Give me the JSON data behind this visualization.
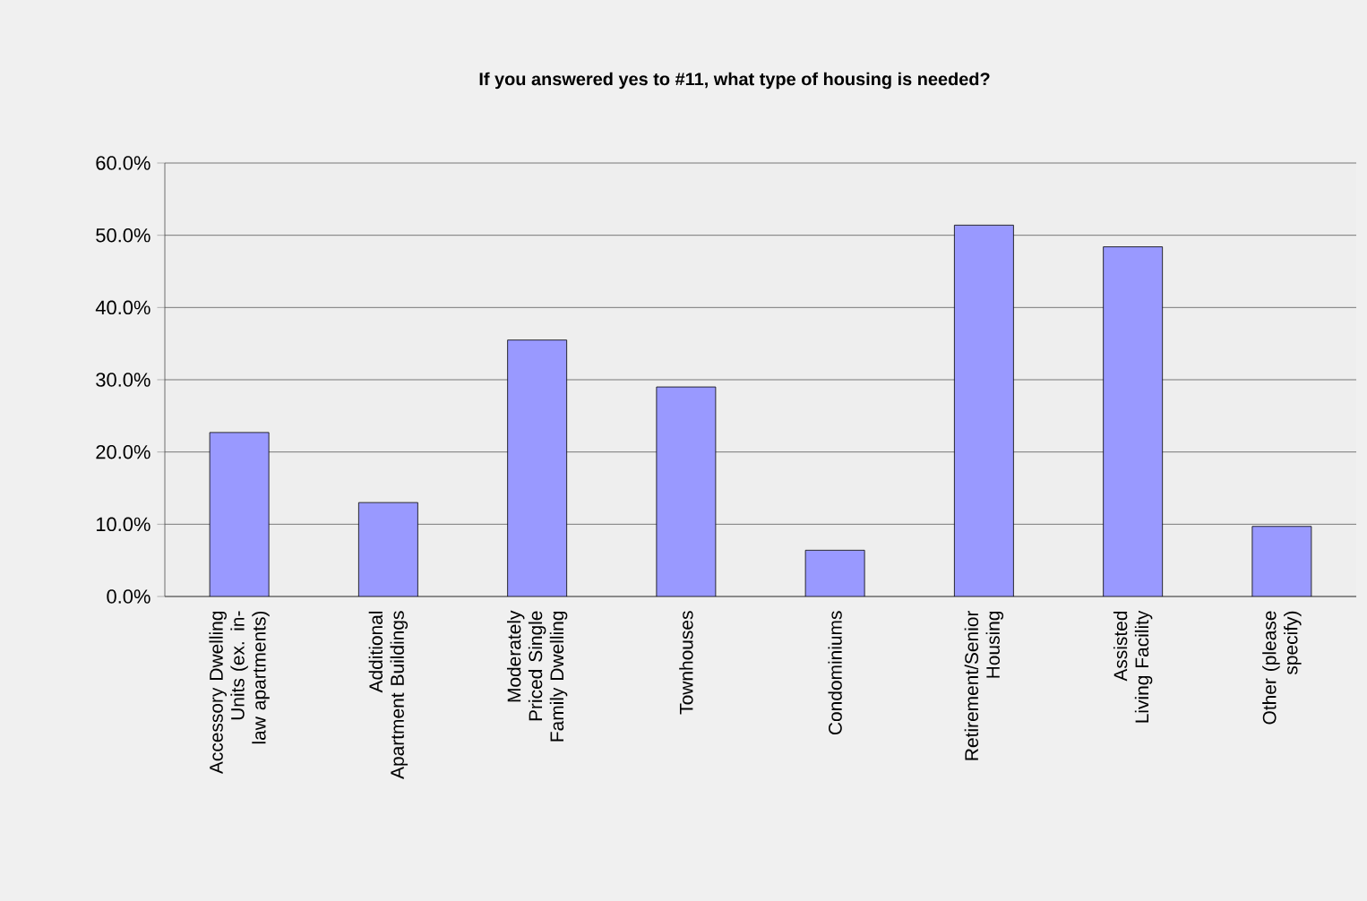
{
  "chart_data": {
    "type": "bar",
    "title": "If you answered yes to #11, what type of housing is needed?",
    "categories": [
      "Accessory Dwelling Units (ex. in-law apartments)",
      "Additional Apartment Buildings",
      "Moderately Priced Single Family Dwelling",
      "Townhouses",
      "Condominiums",
      "Retirement/Senior Housing",
      "Assisted Living Facility",
      "Other (please specify)"
    ],
    "values": [
      22.7,
      13.0,
      35.5,
      29.0,
      6.4,
      51.4,
      48.4,
      9.7
    ],
    "color": "#9999ff",
    "ylim": [
      0,
      60
    ],
    "yticks": [
      {
        "value": 0,
        "label": "0.0%"
      },
      {
        "value": 10,
        "label": "10.0%"
      },
      {
        "value": 20,
        "label": "20.0%"
      },
      {
        "value": 30,
        "label": "30.0%"
      },
      {
        "value": 40,
        "label": "40.0%"
      },
      {
        "value": 50,
        "label": "50.0%"
      },
      {
        "value": 60,
        "label": "60.0%"
      }
    ],
    "grid": "y"
  }
}
